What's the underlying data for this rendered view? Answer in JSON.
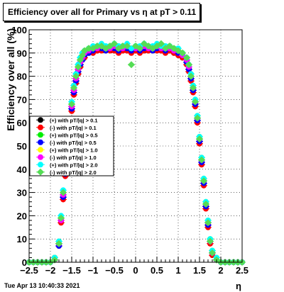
{
  "footer": {
    "timestamp": "Tue Apr 13 10:40:33 2021"
  },
  "chart_data": {
    "type": "scatter",
    "title": "Efficiency over all for Primary vs    η at pT > 0.11",
    "xlabel": "η",
    "ylabel": "Efficiency over all (%)",
    "xlim": [
      -2.5,
      2.5
    ],
    "ylim": [
      0,
      100
    ],
    "x_ticks": [
      -2.5,
      -2,
      -1.5,
      -1,
      -0.5,
      0,
      0.5,
      1,
      1.5,
      2,
      2.5
    ],
    "x_tick_labels": [
      "−2.5",
      "−2",
      "−1.5",
      "−1",
      "−0.5",
      "0",
      "0.5",
      "1",
      "1.5",
      "2",
      "2.5"
    ],
    "y_ticks": [
      0,
      10,
      20,
      30,
      40,
      50,
      60,
      70,
      80,
      90,
      100
    ],
    "y_tick_labels": [
      "0",
      "10",
      "20",
      "30",
      "40",
      "50",
      "60",
      "70",
      "80",
      "90",
      "100"
    ],
    "grid": true,
    "legend_position": "left-middle",
    "x": [
      -2.5,
      -2.4,
      -2.3,
      -2.2,
      -2.1,
      -2.0,
      -1.9,
      -1.8,
      -1.75,
      -1.7,
      -1.65,
      -1.6,
      -1.55,
      -1.5,
      -1.45,
      -1.4,
      -1.35,
      -1.3,
      -1.25,
      -1.2,
      -1.1,
      -1.0,
      -0.9,
      -0.8,
      -0.7,
      -0.6,
      -0.5,
      -0.4,
      -0.3,
      -0.2,
      -0.1,
      0.0,
      0.1,
      0.2,
      0.3,
      0.4,
      0.5,
      0.6,
      0.7,
      0.8,
      0.9,
      1.0,
      1.1,
      1.2,
      1.25,
      1.3,
      1.35,
      1.4,
      1.45,
      1.5,
      1.55,
      1.6,
      1.65,
      1.7,
      1.75,
      1.8,
      1.9,
      2.0,
      2.1,
      2.2,
      2.3,
      2.4,
      2.5
    ],
    "series": [
      {
        "name": "(+) with pT/|q| > 0.1",
        "color": "#000000",
        "marker": "circle",
        "values": [
          0,
          0,
          0,
          0,
          0,
          0,
          2,
          8,
          18,
          28,
          38,
          48,
          58,
          66,
          73,
          78,
          82,
          85,
          87,
          89,
          90,
          91,
          91,
          92,
          91,
          92,
          91,
          91,
          91,
          91,
          91,
          91,
          91,
          91,
          91,
          92,
          91,
          91,
          91,
          91,
          90,
          90,
          88,
          86,
          83,
          79,
          74,
          68,
          61,
          52,
          43,
          34,
          24,
          16,
          9,
          4,
          1,
          0,
          0,
          0,
          0,
          0,
          0
        ]
      },
      {
        "name": "(-) with pT/|q| > 0.1",
        "color": "#ff0000",
        "marker": "circle",
        "values": [
          0,
          0,
          0,
          0,
          0,
          0,
          1,
          7,
          17,
          27,
          37,
          47,
          57,
          65,
          72,
          77,
          81,
          84,
          87,
          88,
          90,
          90,
          91,
          91,
          91,
          91,
          91,
          90,
          91,
          91,
          90,
          91,
          90,
          91,
          91,
          91,
          91,
          91,
          90,
          91,
          90,
          89,
          88,
          85,
          82,
          78,
          73,
          67,
          60,
          51,
          42,
          33,
          23,
          15,
          8,
          3,
          1,
          0,
          0,
          0,
          0,
          0,
          0
        ]
      },
      {
        "name": "(+) with pT/|q| > 0.5",
        "color": "#00ee00",
        "marker": "circle",
        "values": [
          0,
          0,
          0,
          0,
          0,
          0,
          2,
          8,
          19,
          29,
          39,
          49,
          59,
          67,
          74,
          79,
          83,
          86,
          88,
          90,
          91,
          92,
          92,
          92,
          92,
          93,
          92,
          92,
          93,
          92,
          92,
          92,
          92,
          93,
          92,
          92,
          93,
          92,
          92,
          92,
          91,
          91,
          89,
          87,
          84,
          80,
          75,
          69,
          62,
          53,
          44,
          35,
          25,
          17,
          10,
          5,
          1,
          0,
          0,
          0,
          0,
          0,
          0
        ]
      },
      {
        "name": "(-) with pT/|q| > 0.5",
        "color": "#0000ff",
        "marker": "circle",
        "values": [
          0,
          0,
          0,
          0,
          0,
          0,
          1,
          7,
          18,
          28,
          38,
          48,
          58,
          66,
          73,
          78,
          82,
          85,
          87,
          89,
          90,
          91,
          92,
          92,
          91,
          92,
          92,
          91,
          92,
          92,
          91,
          92,
          91,
          92,
          92,
          91,
          92,
          92,
          91,
          92,
          91,
          90,
          89,
          86,
          83,
          79,
          74,
          68,
          61,
          52,
          43,
          34,
          24,
          16,
          9,
          4,
          1,
          0,
          0,
          0,
          0,
          0,
          0
        ]
      },
      {
        "name": "(+) with pT/|q| > 1.0",
        "color": "#ffff00",
        "marker": "circle",
        "values": [
          0,
          0,
          0,
          0,
          0,
          0,
          2,
          9,
          19,
          30,
          40,
          50,
          60,
          68,
          75,
          80,
          84,
          87,
          89,
          90,
          92,
          92,
          93,
          93,
          92,
          93,
          93,
          92,
          93,
          93,
          92,
          93,
          92,
          93,
          93,
          92,
          93,
          93,
          92,
          93,
          92,
          91,
          90,
          88,
          85,
          81,
          76,
          70,
          63,
          54,
          45,
          36,
          26,
          18,
          10,
          5,
          2,
          0,
          0,
          0,
          0,
          0,
          0
        ]
      },
      {
        "name": "(-) with pT/|q| > 1.0",
        "color": "#ff00ff",
        "marker": "circle",
        "values": [
          0,
          0,
          0,
          0,
          0,
          0,
          1,
          8,
          18,
          29,
          39,
          49,
          59,
          67,
          74,
          79,
          83,
          86,
          88,
          90,
          91,
          92,
          92,
          93,
          92,
          92,
          93,
          92,
          92,
          93,
          92,
          92,
          92,
          93,
          92,
          92,
          93,
          92,
          92,
          92,
          91,
          91,
          89,
          87,
          84,
          80,
          75,
          69,
          62,
          53,
          44,
          35,
          25,
          17,
          9,
          4,
          1,
          0,
          0,
          0,
          0,
          0,
          0
        ]
      },
      {
        "name": "(+) with pT/|q| > 2.0",
        "color": "#00ffff",
        "marker": "circle",
        "values": [
          0,
          0,
          0,
          0,
          0,
          0,
          2,
          9,
          20,
          31,
          41,
          51,
          61,
          69,
          76,
          81,
          85,
          88,
          90,
          91,
          92,
          93,
          93,
          94,
          93,
          93,
          94,
          93,
          93,
          94,
          92,
          93,
          93,
          94,
          93,
          93,
          94,
          93,
          93,
          93,
          92,
          92,
          90,
          88,
          85,
          81,
          76,
          70,
          63,
          54,
          45,
          36,
          26,
          18,
          10,
          5,
          2,
          0,
          0,
          0,
          0,
          0,
          0
        ]
      },
      {
        "name": "(-) with pT/|q| > 2.0",
        "color": "#55dd55",
        "marker": "diamond",
        "values": [
          0,
          0,
          0,
          0,
          0,
          0,
          1,
          8,
          19,
          30,
          40,
          50,
          60,
          68,
          75,
          80,
          84,
          87,
          89,
          91,
          92,
          92,
          93,
          93,
          92,
          93,
          94,
          92,
          93,
          93,
          85,
          93,
          92,
          94,
          93,
          92,
          93,
          94,
          92,
          93,
          92,
          91,
          90,
          88,
          85,
          80,
          75,
          69,
          62,
          53,
          44,
          35,
          25,
          17,
          9,
          4,
          1,
          0,
          0,
          0,
          0,
          0,
          0
        ]
      }
    ]
  }
}
